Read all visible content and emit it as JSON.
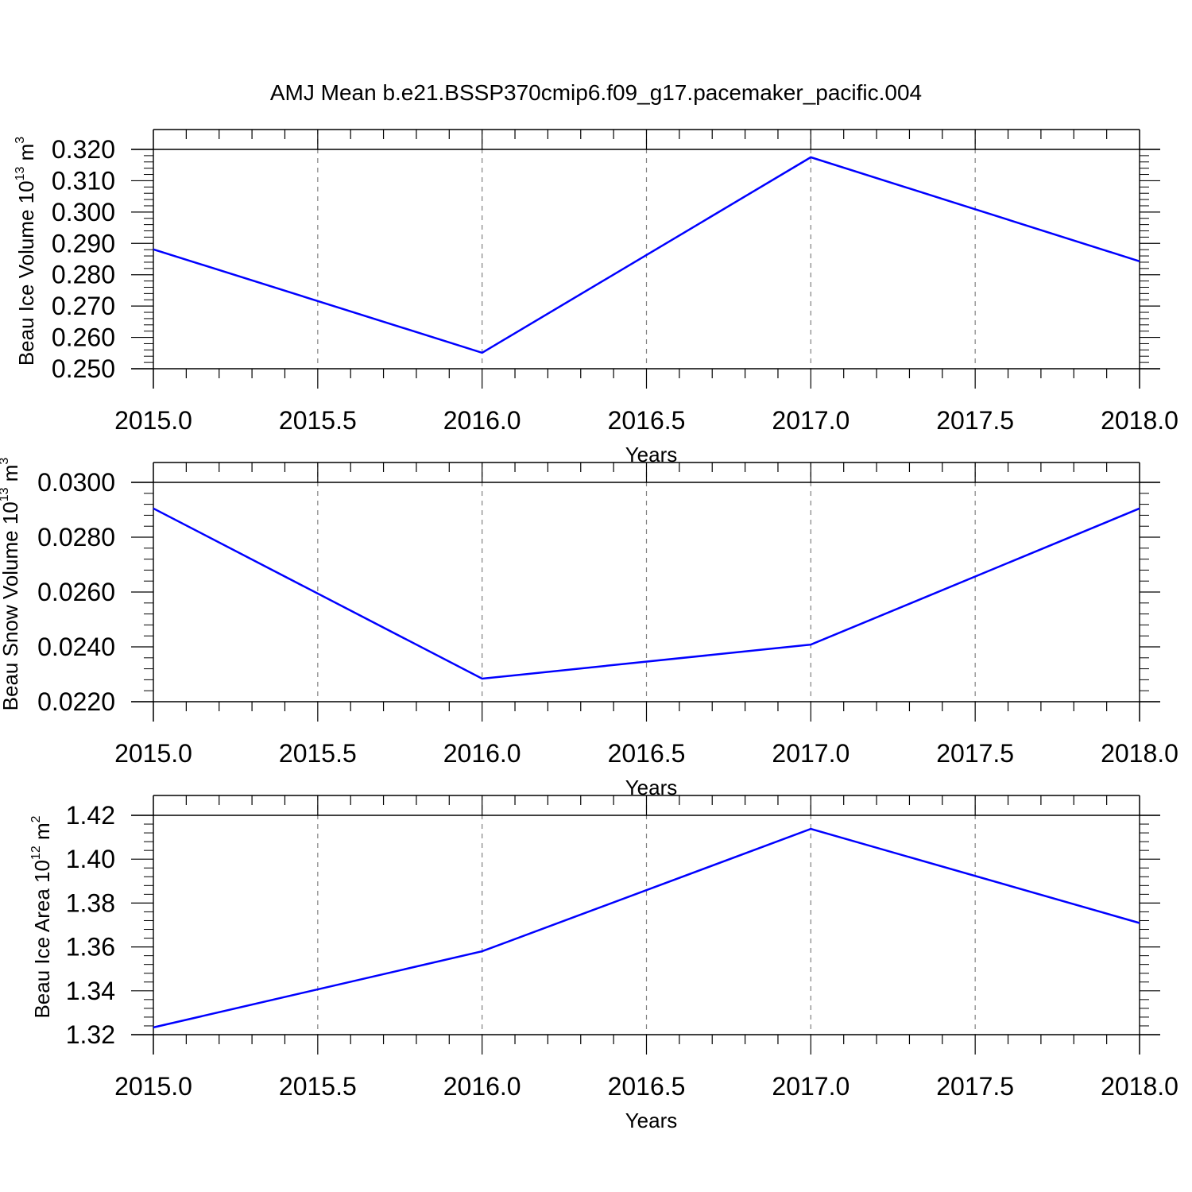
{
  "title": "AMJ Mean b.e21.BSSP370cmip6.f09_g17.pacemaker_pacific.004",
  "colors": {
    "line": "#0000ff",
    "frame": "#000000",
    "grid": "#808080"
  },
  "chart_data": [
    {
      "type": "line",
      "xlabel": "Years",
      "ylabel": {
        "text": "Beau Ice Volume 10",
        "exponent": "13",
        "unit": " m",
        "unit_exponent": "3"
      },
      "x": [
        2015,
        2016,
        2017,
        2018
      ],
      "series": [
        {
          "values": [
            0.2881,
            0.2551,
            0.3175,
            0.2843
          ]
        }
      ],
      "xlim": [
        2015,
        2018
      ],
      "ylim": [
        0.25,
        0.32
      ],
      "x_ticks": [
        "2015.0",
        "2015.5",
        "2016.0",
        "2016.5",
        "2017.0",
        "2017.5",
        "2018.0"
      ],
      "y_ticks": [
        "0.250",
        "0.260",
        "0.270",
        "0.280",
        "0.290",
        "0.300",
        "0.310",
        "0.320"
      ],
      "grid": "vertical dashed at major x ticks"
    },
    {
      "type": "line",
      "xlabel": "Years",
      "ylabel": {
        "text": "Beau Snow Volume 10",
        "exponent": "13",
        "unit": " m",
        "unit_exponent": "3"
      },
      "x": [
        2015,
        2016,
        2017,
        2018
      ],
      "series": [
        {
          "values": [
            0.02905,
            0.02284,
            0.02408,
            0.02905
          ]
        }
      ],
      "xlim": [
        2015,
        2018
      ],
      "ylim": [
        0.022,
        0.03
      ],
      "x_ticks": [
        "2015.0",
        "2015.5",
        "2016.0",
        "2016.5",
        "2017.0",
        "2017.5",
        "2018.0"
      ],
      "y_ticks": [
        "0.0220",
        "0.0240",
        "0.0260",
        "0.0280",
        "0.0300"
      ],
      "grid": "vertical dashed at major x ticks"
    },
    {
      "type": "line",
      "xlabel": "Years",
      "ylabel": {
        "text": "Beau Ice Area 10",
        "exponent": "12",
        "unit": " m",
        "unit_exponent": "2"
      },
      "x": [
        2015,
        2016,
        2017,
        2018
      ],
      "series": [
        {
          "values": [
            1.3233,
            1.358,
            1.4138,
            1.3709
          ]
        }
      ],
      "xlim": [
        2015,
        2018
      ],
      "ylim": [
        1.32,
        1.42
      ],
      "x_ticks": [
        "2015.0",
        "2015.5",
        "2016.0",
        "2016.5",
        "2017.0",
        "2017.5",
        "2018.0"
      ],
      "y_ticks": [
        "1.32",
        "1.34",
        "1.36",
        "1.38",
        "1.40",
        "1.42"
      ],
      "grid": "vertical dashed at major x ticks"
    }
  ]
}
